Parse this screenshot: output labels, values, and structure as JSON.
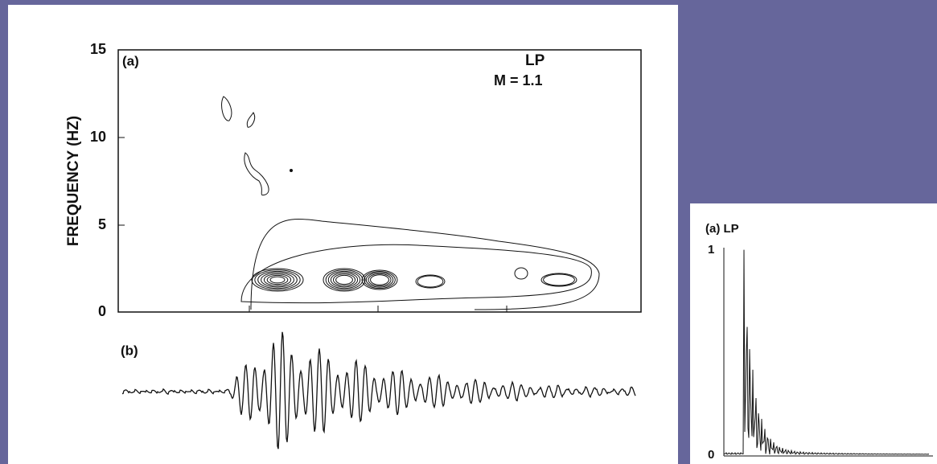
{
  "left_figure": {
    "panel_a_label": "(a)",
    "panel_b_label": "(b)",
    "event_type": "LP",
    "magnitude": "M = 1.1",
    "y_axis_title": "FREQUENCY (HZ)",
    "y_tick_labels": [
      "15",
      "10",
      "5",
      "0"
    ]
  },
  "right_figure": {
    "panel_label": "(a) LP",
    "y_tick_labels": [
      "1",
      "0"
    ]
  }
}
